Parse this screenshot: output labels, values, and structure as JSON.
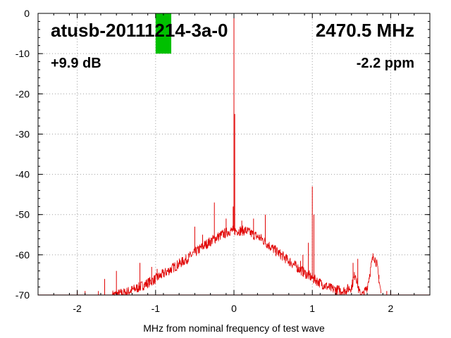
{
  "chart_data": {
    "type": "line",
    "title": "atusb-20111214-3a-0",
    "frequency_label": "2470.5 MHz",
    "gain_label": "+9.9 dB",
    "ppm_label": "-2.2 ppm",
    "xlabel": "MHz from nominal frequency of test wave",
    "ylabel": "",
    "xlim": [
      -2.5,
      2.5
    ],
    "ylim": [
      -70,
      0
    ],
    "xticks": [
      -2,
      -1,
      0,
      1,
      2
    ],
    "xtick_labels": [
      "-2",
      "-1",
      "0",
      "1",
      "2"
    ],
    "yticks": [
      0,
      -10,
      -20,
      -30,
      -40,
      -50,
      -60,
      -70
    ],
    "ytick_labels": [
      "0",
      "-10",
      "-20",
      "-30",
      "-40",
      "-50",
      "-60",
      "-70"
    ],
    "grid": true,
    "marker": {
      "x_range": [
        -1.0,
        -0.8
      ],
      "y_range": [
        -10,
        0
      ],
      "color": "#00c000"
    },
    "series": [
      {
        "color": "#e00000",
        "envelope": [
          [
            -1.55,
            -70
          ],
          [
            -1.4,
            -69.5
          ],
          [
            -1.2,
            -68
          ],
          [
            -1.0,
            -66
          ],
          [
            -0.8,
            -63.5
          ],
          [
            -0.6,
            -61
          ],
          [
            -0.4,
            -58
          ],
          [
            -0.25,
            -56
          ],
          [
            -0.15,
            -55
          ],
          [
            -0.05,
            -54
          ],
          [
            0.05,
            -54
          ],
          [
            0.15,
            -54
          ],
          [
            0.25,
            -55
          ],
          [
            0.35,
            -56
          ],
          [
            0.5,
            -58.5
          ],
          [
            0.7,
            -61.5
          ],
          [
            0.9,
            -64.5
          ],
          [
            1.1,
            -67
          ],
          [
            1.25,
            -68.5
          ],
          [
            1.4,
            -69
          ],
          [
            1.5,
            -68
          ],
          [
            1.55,
            -64.5
          ],
          [
            1.6,
            -69.5
          ],
          [
            1.65,
            -70
          ],
          [
            1.7,
            -68
          ],
          [
            1.78,
            -60
          ],
          [
            1.82,
            -62
          ],
          [
            1.88,
            -70
          ]
        ],
        "spurs": [
          [
            0.0,
            0
          ],
          [
            0.01,
            -25
          ],
          [
            -0.01,
            -48
          ],
          [
            0.0,
            -44
          ],
          [
            1.0,
            -43
          ],
          [
            1.02,
            -50
          ],
          [
            -0.25,
            -47
          ],
          [
            -0.5,
            -53
          ],
          [
            0.25,
            -51
          ],
          [
            0.4,
            -50
          ],
          [
            0.95,
            -57
          ],
          [
            0.88,
            -60
          ],
          [
            0.85,
            -61.5
          ],
          [
            -0.1,
            -51
          ],
          [
            0.1,
            -51.5
          ],
          [
            -0.4,
            -55
          ],
          [
            -1.2,
            -62
          ],
          [
            -1.05,
            -63
          ],
          [
            -0.98,
            -63.5
          ],
          [
            -1.5,
            -64
          ],
          [
            -1.65,
            -66
          ],
          [
            -1.9,
            -69
          ],
          [
            -2.0,
            -69
          ],
          [
            -1.73,
            -69
          ],
          [
            1.58,
            -61
          ],
          [
            1.52,
            -62
          ],
          [
            1.85,
            -65
          ],
          [
            1.95,
            -69
          ],
          [
            2.0,
            -69
          ]
        ]
      }
    ]
  }
}
